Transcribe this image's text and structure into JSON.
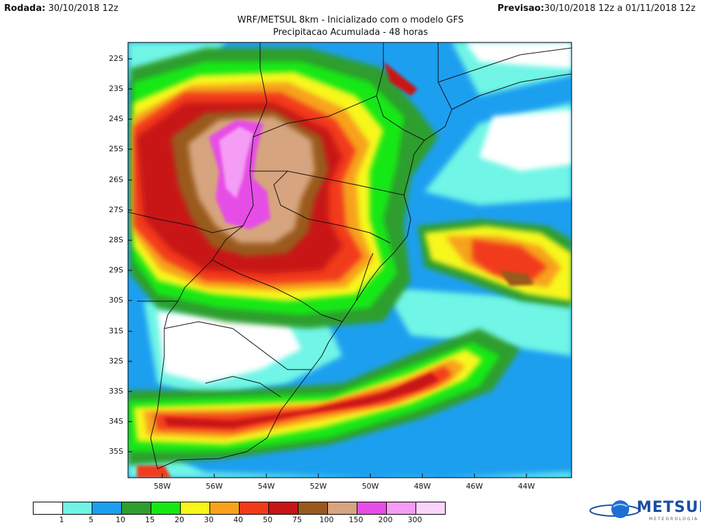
{
  "header": {
    "run_label": "Rodada:",
    "run_value": "30/10/2018 12z",
    "forecast_label": "Previsao:",
    "forecast_value": "30/10/2018 12z a 01/11/2018 12z",
    "title": "WRF/METSUL 8km - Inicializado com o modelo GFS",
    "subtitle": "Precipitacao Acumulada - 48 horas"
  },
  "map": {
    "lat_labels": [
      "22S",
      "23S",
      "24S",
      "25S",
      "26S",
      "27S",
      "28S",
      "29S",
      "30S",
      "31S",
      "32S",
      "33S",
      "34S",
      "35S"
    ],
    "lon_labels": [
      "58W",
      "56W",
      "54W",
      "52W",
      "50W",
      "48W",
      "46W",
      "44W"
    ]
  },
  "colorbar": {
    "ticks": [
      "1",
      "5",
      "10",
      "15",
      "20",
      "30",
      "40",
      "50",
      "75",
      "100",
      "150",
      "200",
      "300"
    ],
    "colors": [
      "#ffffff",
      "#6ff5e6",
      "#1d9ff0",
      "#2e9e2e",
      "#15e815",
      "#f7f71a",
      "#f7a21a",
      "#f23a1a",
      "#c81414",
      "#9a5a1e",
      "#d6a47e",
      "#e64de6",
      "#f59cf5",
      "#fbd4fb"
    ]
  },
  "logo": {
    "name": "METSUL",
    "tagline": "METEOROLOGIA"
  }
}
